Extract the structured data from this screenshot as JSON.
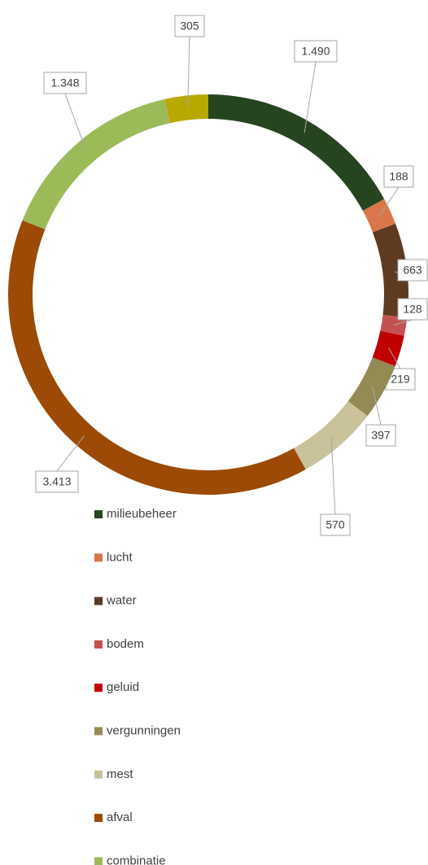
{
  "chart_data": {
    "type": "donut",
    "categories": [
      "milieubeheer",
      "lucht",
      "water",
      "bodem",
      "geluid",
      "vergunningen",
      "mest",
      "afval",
      "combinatie",
      null
    ],
    "values": [
      1490,
      188,
      663,
      128,
      219,
      397,
      570,
      3413,
      1348,
      305
    ],
    "value_labels": [
      "1.490",
      "188",
      "663",
      "128",
      "219",
      "397",
      "570",
      "3.413",
      "1.348",
      "305"
    ],
    "colors": [
      "#264420",
      "#d9774a",
      "#5e3a20",
      "#c65050",
      "#c00000",
      "#948a54",
      "#c9c29a",
      "#9c4a06",
      "#9bbb59",
      "#b8a800"
    ],
    "legend": "bottom"
  }
}
